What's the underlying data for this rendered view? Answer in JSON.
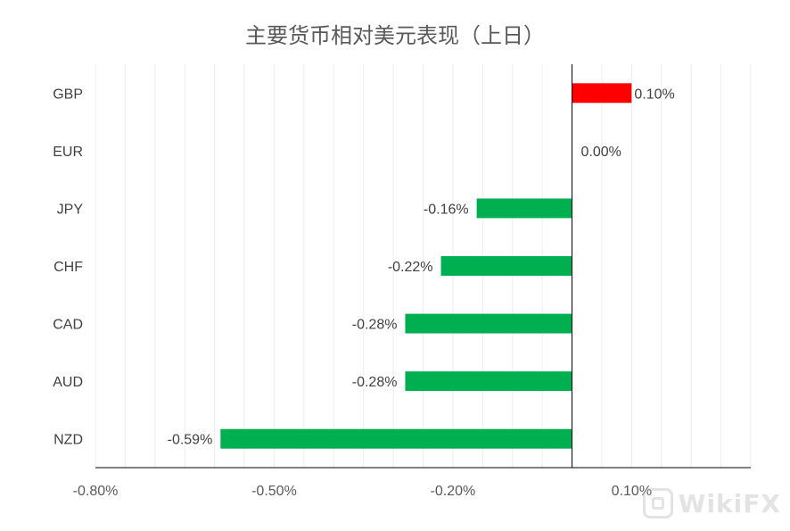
{
  "chart_data": {
    "type": "bar",
    "orientation": "horizontal",
    "title": "主要货币相对美元表现（上日）",
    "categories": [
      "GBP",
      "EUR",
      "JPY",
      "CHF",
      "CAD",
      "AUD",
      "NZD"
    ],
    "values": [
      0.1,
      0.0,
      -0.16,
      -0.22,
      -0.28,
      -0.28,
      -0.59
    ],
    "value_labels": [
      "0.10%",
      "0.00%",
      "-0.16%",
      "-0.22%",
      "-0.28%",
      "-0.28%",
      "-0.59%"
    ],
    "xlim": [
      -0.8,
      0.3
    ],
    "xticks": [
      -0.8,
      -0.5,
      -0.2,
      0.1
    ],
    "xtick_labels": [
      "-0.80%",
      "-0.50%",
      "-0.20%",
      "0.10%"
    ],
    "grid": true,
    "colors": {
      "positive": "#ff0000",
      "negative": "#00b050",
      "axis": "#000000",
      "grid": "#ececec"
    }
  },
  "watermark": {
    "text": "WikiFX"
  }
}
